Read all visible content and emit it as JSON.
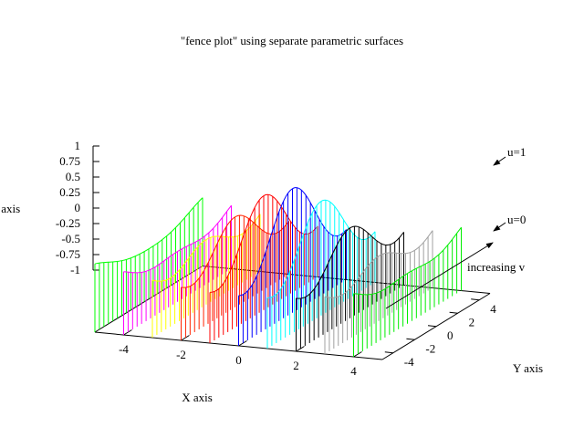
{
  "chart_data": {
    "type": "fence",
    "title": "\"fence plot\" using separate parametric surfaces",
    "xlabel": "X axis",
    "ylabel": "Y axis",
    "zlabel": "Z axis",
    "xlim": [
      -5,
      5
    ],
    "ylim": [
      -5,
      5
    ],
    "zlim": [
      -1,
      1
    ],
    "x_ticks": [
      -4,
      -2,
      0,
      2,
      4
    ],
    "y_ticks": [
      -4,
      -2,
      0,
      2,
      4
    ],
    "z_ticks": [
      -1,
      -0.75,
      -0.5,
      -0.25,
      0,
      0.25,
      0.5,
      0.75,
      1
    ],
    "z_tick_labels": [
      "-1",
      "-0.75",
      "-0.5",
      "-0.25",
      "0",
      "0.25",
      "0.5",
      "0.75",
      "1"
    ],
    "annotations": [
      "u=1",
      "u=0",
      "increasing v"
    ],
    "fences": [
      {
        "x": -5,
        "color": "#00ff00"
      },
      {
        "x": -4,
        "color": "#ff00ff"
      },
      {
        "x": -3,
        "color": "#ffff00"
      },
      {
        "x": -2,
        "color": "#ff2200"
      },
      {
        "x": -1,
        "color": "#ff0000"
      },
      {
        "x": 0,
        "color": "#0000ff"
      },
      {
        "x": 1,
        "color": "#00ffff"
      },
      {
        "x": 2,
        "color": "#000000"
      },
      {
        "x": 3,
        "color": "#a0a0a0"
      },
      {
        "x": 4,
        "color": "#00ee00"
      }
    ],
    "fence_base_z": -1
  }
}
